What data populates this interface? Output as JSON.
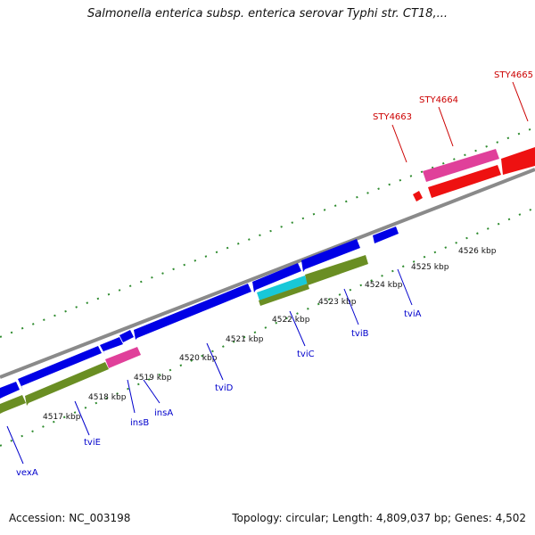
{
  "title": "Salmonella enterica subsp. enterica serovar Typhi str. CT18,...",
  "footer": {
    "accession": "Accession: NC_003198",
    "summary": "Topology: circular; Length: 4,809,037 bp; Genes: 4,502"
  },
  "colors": {
    "backbone": "#8a8a8a",
    "tick": "#2e8b2e",
    "cds_blue": "#0000e6",
    "cds_magenta": "#e0409a",
    "cds_red": "#ee1111",
    "cds_cyan": "#18c8d8",
    "cds_olive": "#6a8e23",
    "label_blue": "#0000cc",
    "label_red": "#cc0000"
  },
  "ticks": [
    "4517 kbp",
    "4518 kbp",
    "4519 kbp",
    "4520 kbp",
    "4521 kbp",
    "4522 kbp",
    "4523 kbp",
    "4524 kbp",
    "4525 kbp",
    "4526 kbp"
  ],
  "genes_blue": [
    "vexA",
    "tviE",
    "insB",
    "insA",
    "tviD",
    "tviC",
    "tviB",
    "tviA"
  ],
  "genes_red": [
    "STY4663",
    "STY4664",
    "STY4665"
  ]
}
